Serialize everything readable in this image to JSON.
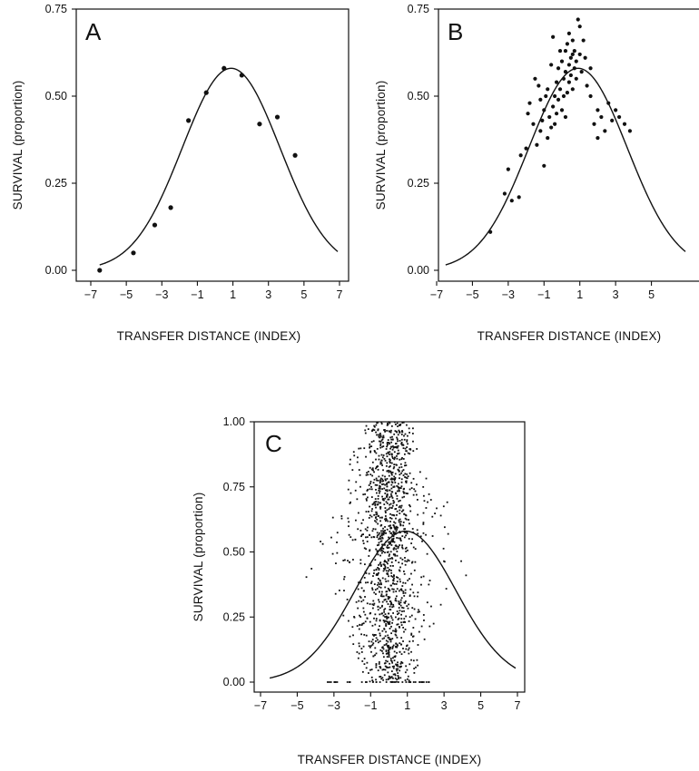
{
  "chart_data": [
    {
      "panel": "A",
      "type": "scatter",
      "xlabel": "TRANSFER DISTANCE (INDEX)",
      "ylabel": "SURVIVAL (proportion)",
      "xlim": [
        -7,
        7
      ],
      "ylim": [
        0,
        0.75
      ],
      "xticks": [
        "-7",
        "-5",
        "-3",
        "-1",
        "1",
        "3",
        "5",
        "7"
      ],
      "yticks": [
        "0.00",
        "0.25",
        "0.50",
        "0.75"
      ],
      "curve": {
        "type": "gaussian",
        "peak_x": 0.9,
        "peak_y": 0.58,
        "sd": 2.75
      },
      "points": [
        [
          -6.5,
          0.0
        ],
        [
          -4.6,
          0.05
        ],
        [
          -3.4,
          0.13
        ],
        [
          -2.5,
          0.18
        ],
        [
          -1.5,
          0.43
        ],
        [
          -0.5,
          0.51
        ],
        [
          0.5,
          0.58
        ],
        [
          1.5,
          0.56
        ],
        [
          2.5,
          0.42
        ],
        [
          3.5,
          0.44
        ],
        [
          4.5,
          0.33
        ]
      ]
    },
    {
      "panel": "B",
      "type": "scatter",
      "xlabel": "TRANSFER DISTANCE (INDEX)",
      "ylabel": "SURVIVAL (proportion)",
      "xlim": [
        -7,
        7
      ],
      "ylim": [
        0,
        0.75
      ],
      "xticks": [
        "-7",
        "-5",
        "-3",
        "-1",
        "1",
        "3",
        "5"
      ],
      "yticks": [
        "0.00",
        "0.25",
        "0.50",
        "0.75"
      ],
      "curve": {
        "type": "gaussian",
        "peak_x": 0.9,
        "peak_y": 0.58,
        "sd": 2.75
      },
      "points": [
        [
          -4.0,
          0.11
        ],
        [
          -3.2,
          0.22
        ],
        [
          -3.0,
          0.29
        ],
        [
          -2.8,
          0.2
        ],
        [
          -2.4,
          0.21
        ],
        [
          -2.0,
          0.35
        ],
        [
          -1.9,
          0.45
        ],
        [
          -1.8,
          0.48
        ],
        [
          -1.6,
          0.42
        ],
        [
          -1.5,
          0.55
        ],
        [
          -1.4,
          0.36
        ],
        [
          -1.3,
          0.53
        ],
        [
          -1.2,
          0.4
        ],
        [
          -1.1,
          0.43
        ],
        [
          -1.0,
          0.3
        ],
        [
          -1.0,
          0.46
        ],
        [
          -0.9,
          0.5
        ],
        [
          -0.8,
          0.38
        ],
        [
          -0.8,
          0.52
        ],
        [
          -0.7,
          0.44
        ],
        [
          -0.6,
          0.41
        ],
        [
          -0.5,
          0.67
        ],
        [
          -0.5,
          0.47
        ],
        [
          -0.4,
          0.5
        ],
        [
          -0.3,
          0.54
        ],
        [
          -0.3,
          0.45
        ],
        [
          -0.2,
          0.58
        ],
        [
          -0.2,
          0.49
        ],
        [
          -0.1,
          0.52
        ],
        [
          0.0,
          0.6
        ],
        [
          0.0,
          0.46
        ],
        [
          0.1,
          0.55
        ],
        [
          0.1,
          0.5
        ],
        [
          0.2,
          0.63
        ],
        [
          0.2,
          0.57
        ],
        [
          0.3,
          0.51
        ],
        [
          0.3,
          0.65
        ],
        [
          0.4,
          0.59
        ],
        [
          0.4,
          0.54
        ],
        [
          0.5,
          0.61
        ],
        [
          0.5,
          0.56
        ],
        [
          0.6,
          0.66
        ],
        [
          0.6,
          0.52
        ],
        [
          0.7,
          0.63
        ],
        [
          0.7,
          0.58
        ],
        [
          0.8,
          0.6
        ],
        [
          0.8,
          0.55
        ],
        [
          0.9,
          0.72
        ],
        [
          1.0,
          0.7
        ],
        [
          1.0,
          0.62
        ],
        [
          1.1,
          0.57
        ],
        [
          1.2,
          0.66
        ],
        [
          1.3,
          0.61
        ],
        [
          1.4,
          0.53
        ],
        [
          1.6,
          0.5
        ],
        [
          1.8,
          0.42
        ],
        [
          2.0,
          0.38
        ],
        [
          2.0,
          0.46
        ],
        [
          2.2,
          0.44
        ],
        [
          2.4,
          0.4
        ],
        [
          2.6,
          0.48
        ],
        [
          3.0,
          0.46
        ],
        [
          3.2,
          0.44
        ],
        [
          3.5,
          0.42
        ],
        [
          3.8,
          0.4
        ],
        [
          -0.6,
          0.59
        ],
        [
          -0.1,
          0.63
        ],
        [
          0.4,
          0.68
        ],
        [
          0.6,
          0.62
        ],
        [
          -1.2,
          0.49
        ],
        [
          -0.4,
          0.42
        ],
        [
          0.2,
          0.44
        ],
        [
          1.6,
          0.58
        ],
        [
          2.8,
          0.43
        ],
        [
          -2.3,
          0.33
        ]
      ]
    },
    {
      "panel": "C",
      "type": "scatter",
      "xlabel": "TRANSFER DISTANCE (INDEX)",
      "ylabel": "SURVIVAL (proportion)",
      "xlim": [
        -7,
        7
      ],
      "ylim": [
        0,
        1.0
      ],
      "xticks": [
        "-7",
        "-5",
        "-3",
        "-1",
        "1",
        "3",
        "5",
        "7"
      ],
      "yticks": [
        "0.00",
        "0.25",
        "0.50",
        "0.75",
        "1.00"
      ],
      "curve": {
        "type": "gaussian",
        "peak_x": 0.9,
        "peak_y": 0.58,
        "sd": 2.75
      },
      "cloud": {
        "n": 1400,
        "x_mean": 0.0,
        "x_sd": 1.35,
        "x_range": [
          -4.5,
          4.2
        ],
        "y_range": [
          0,
          1.0
        ],
        "floor_points_y": 0.0,
        "floor_x_range": [
          -3.5,
          2.5
        ]
      }
    }
  ],
  "panels": {
    "A": {
      "letter": "A"
    },
    "B": {
      "letter": "B"
    },
    "C": {
      "letter": "C"
    }
  }
}
